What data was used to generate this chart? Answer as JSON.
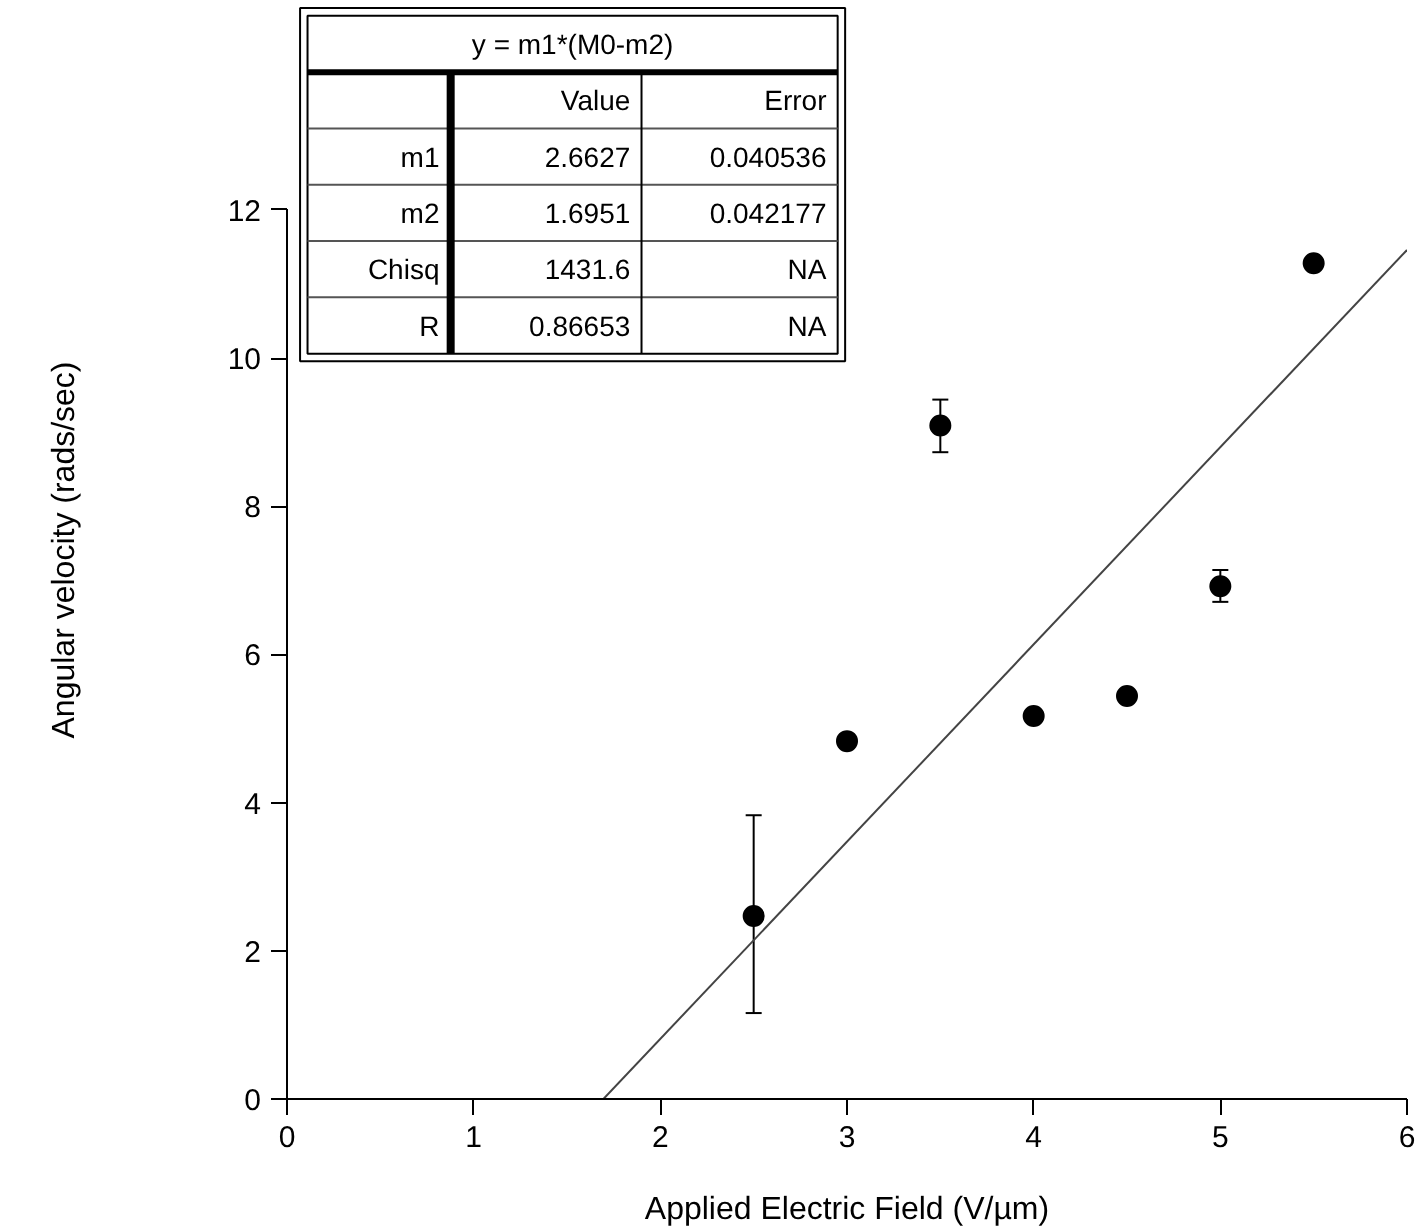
{
  "chart_data": {
    "type": "scatter",
    "xlabel": "Applied Electric Field (V/µm)",
    "ylabel": "Angular velocity (rads/sec)",
    "xlim": [
      0,
      6
    ],
    "ylim": [
      0,
      12
    ],
    "xticks": [
      0,
      1,
      2,
      3,
      4,
      5,
      6
    ],
    "yticks": [
      0,
      2,
      4,
      6,
      8,
      10,
      12
    ],
    "grid": false,
    "series": [
      {
        "color": "#000000",
        "x": [
          2.5,
          3.0,
          3.5,
          4.0,
          4.5,
          5.0,
          5.5
        ],
        "values": [
          2.47,
          4.83,
          9.09,
          5.17,
          5.44,
          6.92,
          11.28
        ],
        "errors": [
          [
            1.16,
            3.83
          ],
          null,
          [
            8.73,
            9.44
          ],
          null,
          null,
          [
            6.71,
            7.14
          ],
          null
        ],
        "marker": "circle"
      },
      {
        "type": "line",
        "color": "#444444",
        "x": [
          1.6951,
          6
        ],
        "values": [
          0,
          11.46
        ],
        "line_style": "solid"
      }
    ],
    "annotations": [
      "y = m1*(M0-m2)",
      "Value",
      "Error",
      "m1",
      "2.6627",
      "0.040536",
      "m2",
      "1.6951",
      "0.042177",
      "Chisq",
      "1431.6",
      "NA",
      "R",
      "0.86653",
      "NA"
    ]
  }
}
